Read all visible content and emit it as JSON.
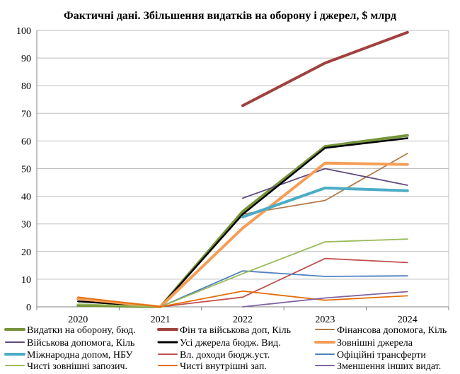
{
  "chart_data": {
    "type": "line",
    "title": "Фактичні дані. Збільшення видатків на оборону і джерел, $ млрд",
    "xlabel": "",
    "ylabel": "",
    "x": [
      "2020",
      "2021",
      "2022",
      "2023",
      "2024"
    ],
    "ylim": [
      0,
      100
    ],
    "yticks": [
      0,
      10,
      20,
      30,
      40,
      50,
      60,
      70,
      80,
      90,
      100
    ],
    "grid": true,
    "legend": "bottom",
    "series": [
      {
        "name": "Видатки на оборону, бюд.",
        "color": "#77933C",
        "values": [
          0.5,
          0,
          34.5,
          58,
          62
        ]
      },
      {
        "name": "Фін та військова доп, Кіль",
        "color": "#A0413E",
        "values": [
          null,
          null,
          72.8,
          88.2,
          99.3
        ]
      },
      {
        "name": "Фінансова допомога, Кіль",
        "color": "#B07B47",
        "values": [
          null,
          null,
          33.5,
          38.5,
          55.5
        ]
      },
      {
        "name": "Військова допомога, Кіль",
        "color": "#5E4A7E",
        "values": [
          null,
          null,
          39.3,
          50,
          44
        ]
      },
      {
        "name": "Усі джерела бюдж. Вид.",
        "color": "#000000",
        "values": [
          2,
          0,
          33.5,
          57.5,
          61
        ]
      },
      {
        "name": "Зовнішні джерела",
        "color": "#F59D56",
        "values": [
          3,
          0,
          28.5,
          52,
          51.5
        ]
      },
      {
        "name": "Міжнародна допом, НБУ",
        "color": "#4BACC6",
        "values": [
          null,
          null,
          32.5,
          43,
          42
        ]
      },
      {
        "name": "Вл. доходи бюдж.уст.",
        "color": "#C0504D",
        "values": [
          null,
          0,
          3.5,
          17.5,
          16
        ]
      },
      {
        "name": "Офіційні трансферти",
        "color": "#4F81BD",
        "values": [
          null,
          0,
          13,
          11,
          11.2
        ]
      },
      {
        "name": "Чисті зовнішні запозич.",
        "color": "#9BBB59",
        "values": [
          1,
          0,
          12,
          23.5,
          24.5
        ]
      },
      {
        "name": "Чисті внутрішні зап.",
        "color": "#E46C0A",
        "values": [
          3.5,
          0,
          5.7,
          2.4,
          4
        ]
      },
      {
        "name": "Зменшення інших видат.",
        "color": "#8064A2",
        "values": [
          null,
          null,
          0,
          3.2,
          5.5
        ]
      }
    ]
  }
}
